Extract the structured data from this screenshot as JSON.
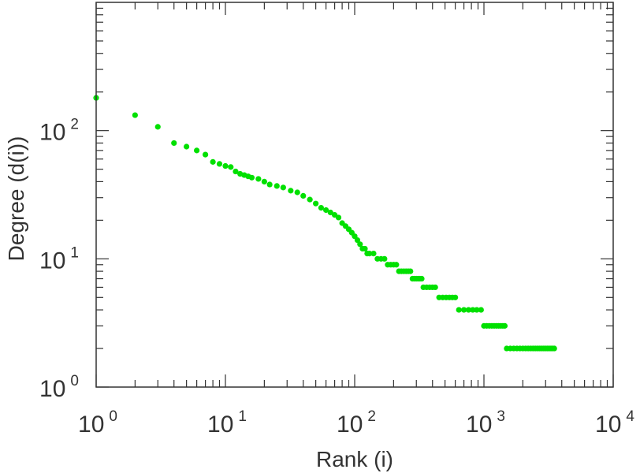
{
  "chart_data": {
    "type": "scatter",
    "title": "",
    "xlabel": "Rank (i)",
    "ylabel": "Degree (d(i))",
    "x_scale": "log",
    "y_scale": "log",
    "xlim": [
      1,
      10000
    ],
    "ylim": [
      1,
      1000
    ],
    "grid": false,
    "marker_color": "#00e000",
    "axis_color": "#333333",
    "x_ticks": [
      {
        "base": "10",
        "exp": "0",
        "value": 1
      },
      {
        "base": "10",
        "exp": "1",
        "value": 10
      },
      {
        "base": "10",
        "exp": "2",
        "value": 100
      },
      {
        "base": "10",
        "exp": "3",
        "value": 1000
      },
      {
        "base": "10",
        "exp": "4",
        "value": 10000
      }
    ],
    "y_ticks": [
      {
        "base": "10",
        "exp": "0",
        "value": 1
      },
      {
        "base": "10",
        "exp": "1",
        "value": 10
      },
      {
        "base": "10",
        "exp": "2",
        "value": 100
      }
    ],
    "series": [
      {
        "points": [
          [
            1,
            180
          ],
          [
            2,
            132
          ],
          [
            3,
            107
          ],
          [
            4,
            80
          ],
          [
            5,
            75
          ],
          [
            6,
            70
          ],
          [
            7,
            65
          ],
          [
            8,
            57
          ],
          [
            9,
            55
          ],
          [
            10,
            53
          ],
          [
            11,
            52
          ],
          [
            12,
            48
          ],
          [
            13,
            46
          ],
          [
            14,
            45
          ],
          [
            15,
            44
          ],
          [
            16,
            43
          ],
          [
            18,
            42
          ],
          [
            20,
            40
          ],
          [
            22,
            38
          ],
          [
            25,
            37
          ],
          [
            28,
            36
          ],
          [
            32,
            34
          ],
          [
            36,
            33
          ],
          [
            40,
            31
          ],
          [
            45,
            29
          ],
          [
            50,
            27
          ],
          [
            55,
            25
          ],
          [
            60,
            24
          ],
          [
            65,
            23
          ],
          [
            70,
            22
          ],
          [
            75,
            21
          ],
          [
            80,
            19
          ],
          [
            85,
            18
          ],
          [
            90,
            17
          ],
          [
            95,
            16
          ],
          [
            100,
            15
          ],
          [
            105,
            14
          ],
          [
            110,
            13
          ],
          [
            115,
            12
          ],
          [
            120,
            12
          ],
          [
            125,
            11
          ],
          [
            130,
            11
          ],
          [
            140,
            11
          ],
          [
            150,
            10
          ],
          [
            160,
            10
          ],
          [
            170,
            10
          ],
          [
            180,
            9
          ],
          [
            190,
            9
          ],
          [
            200,
            9
          ],
          [
            210,
            9
          ],
          [
            220,
            8
          ],
          [
            230,
            8
          ],
          [
            240,
            8
          ],
          [
            250,
            8
          ],
          [
            260,
            8
          ],
          [
            270,
            8
          ],
          [
            280,
            7
          ],
          [
            290,
            7
          ],
          [
            300,
            7
          ],
          [
            310,
            7
          ],
          [
            320,
            7
          ],
          [
            330,
            7
          ],
          [
            340,
            6
          ],
          [
            360,
            6
          ],
          [
            380,
            6
          ],
          [
            400,
            6
          ],
          [
            420,
            6
          ],
          [
            450,
            5
          ],
          [
            480,
            5
          ],
          [
            510,
            5
          ],
          [
            540,
            5
          ],
          [
            570,
            5
          ],
          [
            600,
            5
          ],
          [
            640,
            4
          ],
          [
            700,
            4
          ],
          [
            760,
            4
          ],
          [
            820,
            4
          ],
          [
            880,
            4
          ],
          [
            950,
            4
          ],
          [
            1000,
            3
          ],
          [
            1050,
            3
          ],
          [
            1100,
            3
          ],
          [
            1150,
            3
          ],
          [
            1200,
            3
          ],
          [
            1250,
            3
          ],
          [
            1300,
            3
          ],
          [
            1350,
            3
          ],
          [
            1400,
            3
          ],
          [
            1450,
            3
          ],
          [
            1500,
            2
          ],
          [
            1600,
            2
          ],
          [
            1700,
            2
          ],
          [
            1800,
            2
          ],
          [
            1900,
            2
          ],
          [
            2000,
            2
          ],
          [
            2100,
            2
          ],
          [
            2200,
            2
          ],
          [
            2300,
            2
          ],
          [
            2400,
            2
          ],
          [
            2500,
            2
          ],
          [
            2600,
            2
          ],
          [
            2700,
            2
          ],
          [
            2800,
            2
          ],
          [
            2900,
            2
          ],
          [
            3000,
            2
          ],
          [
            3100,
            2
          ],
          [
            3200,
            2
          ],
          [
            3300,
            2
          ],
          [
            3400,
            2
          ],
          [
            3500,
            2
          ]
        ]
      }
    ]
  }
}
